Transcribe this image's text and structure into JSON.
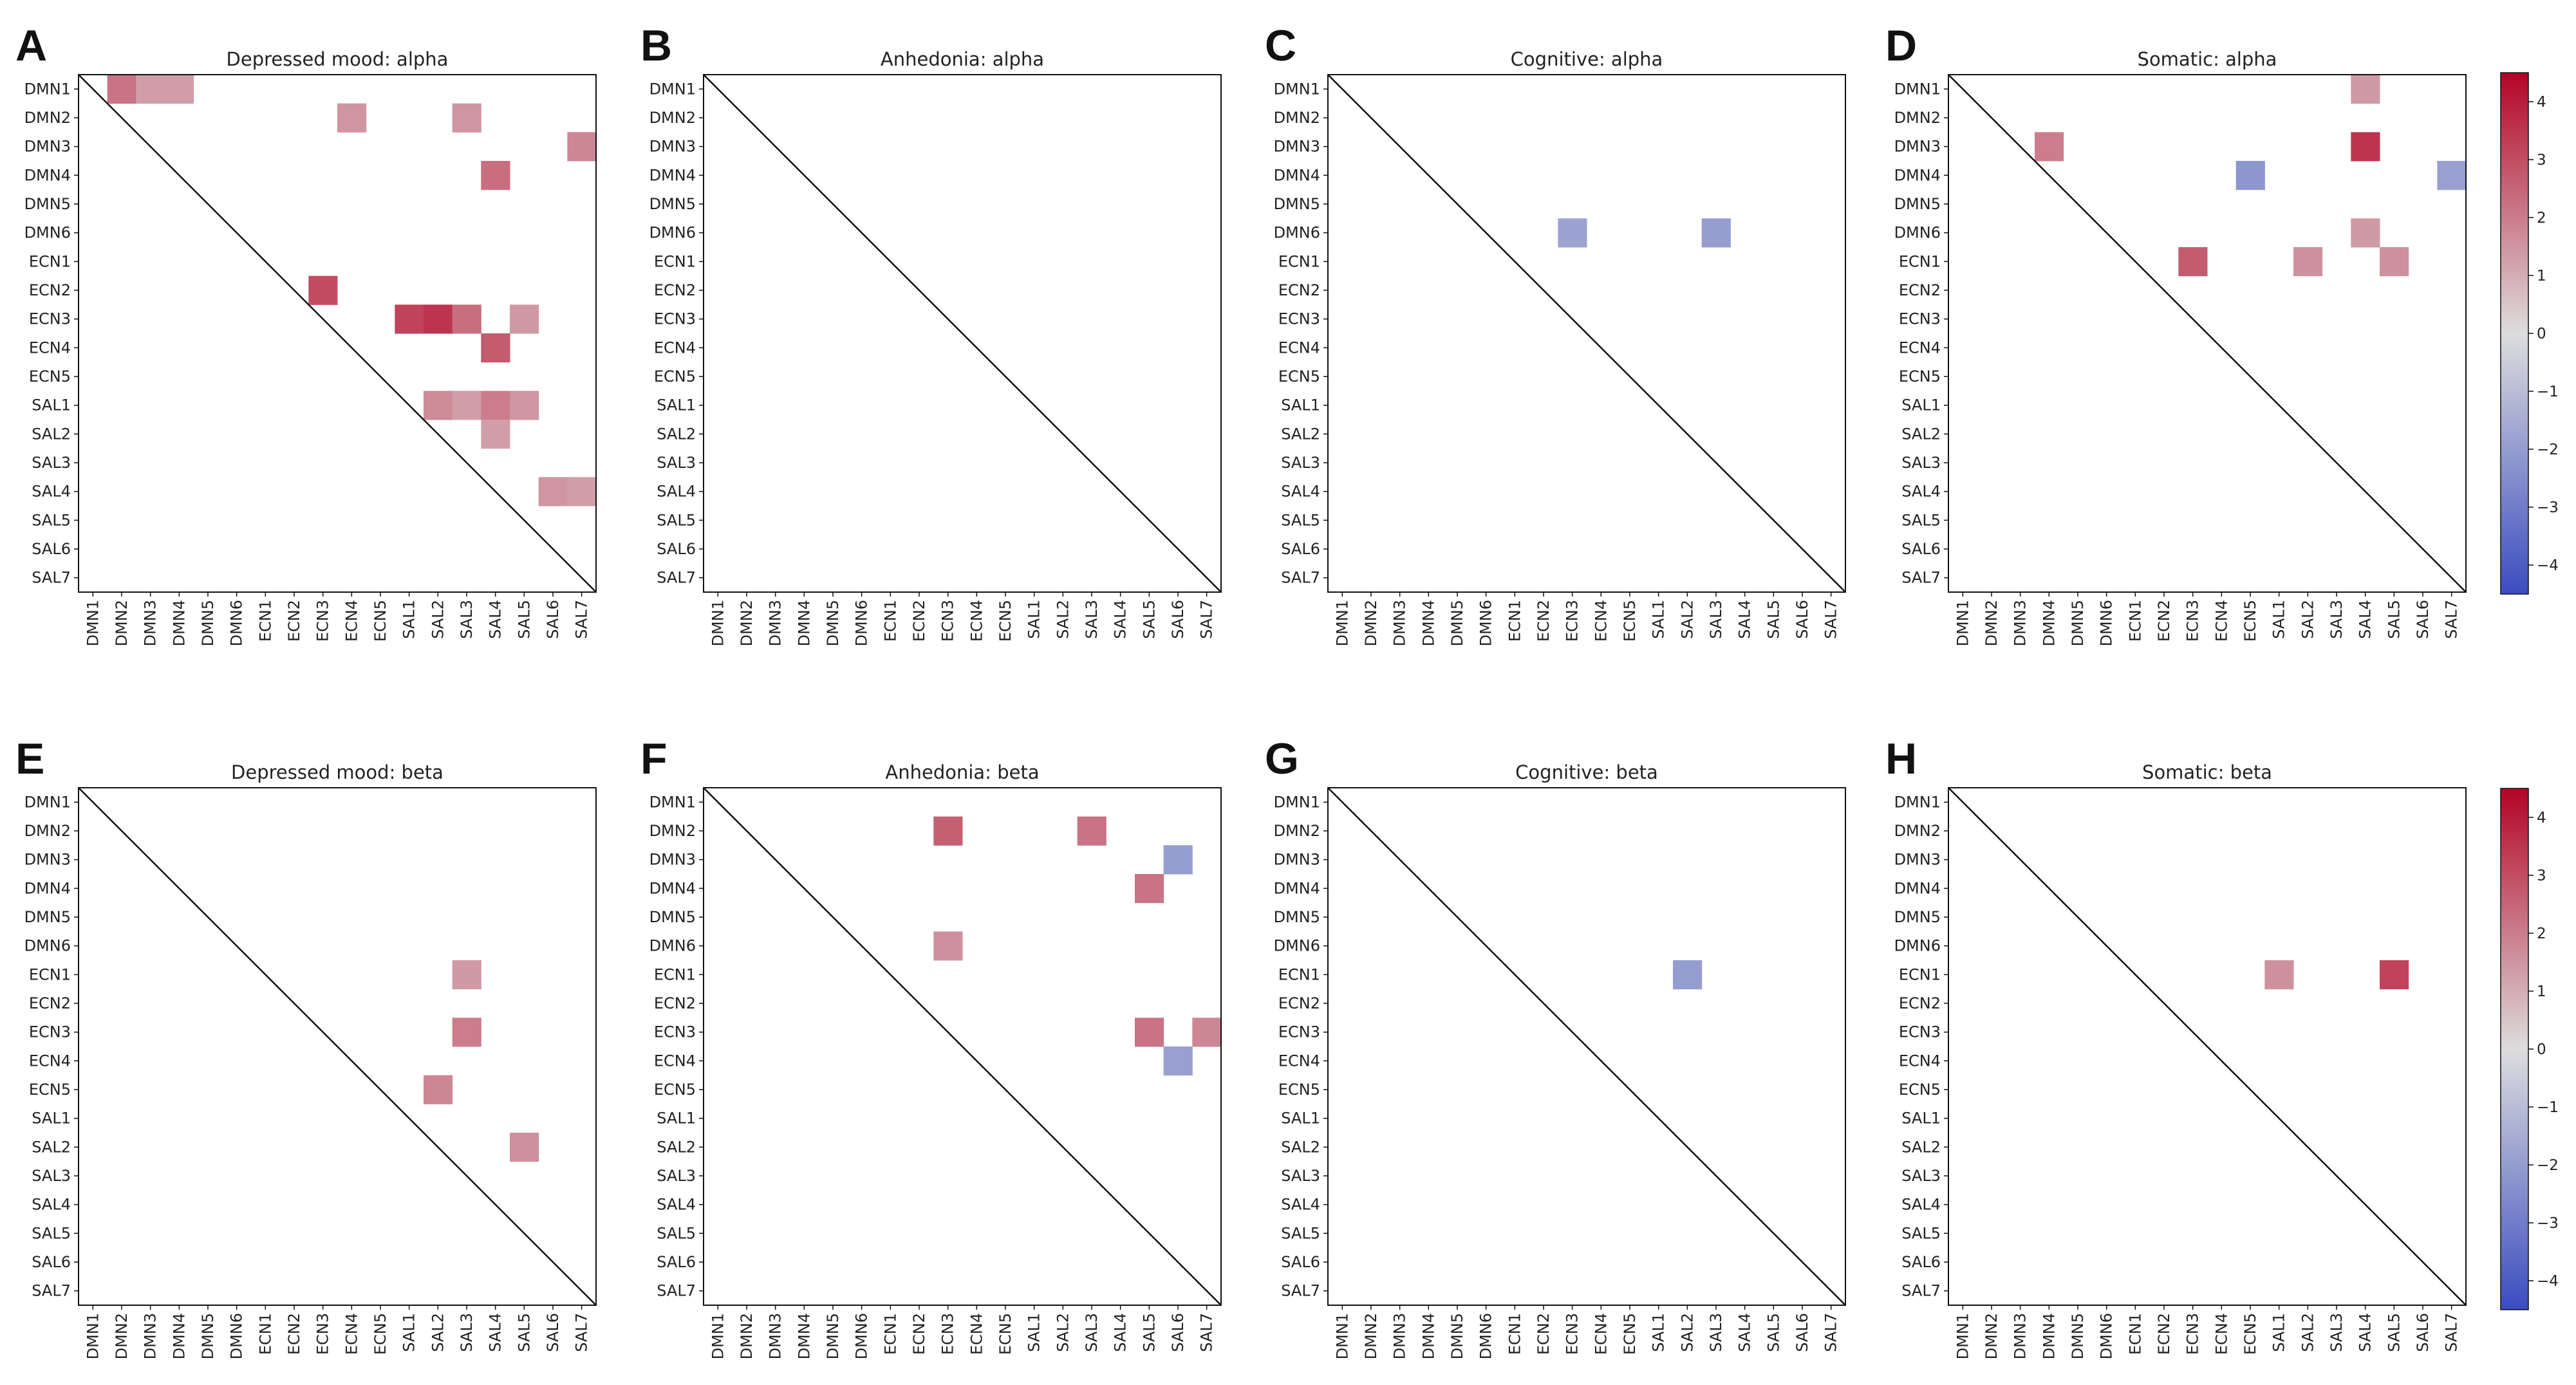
{
  "figure": {
    "labels": [
      "DMN1",
      "DMN2",
      "DMN3",
      "DMN4",
      "DMN5",
      "DMN6",
      "ECN1",
      "ECN2",
      "ECN3",
      "ECN4",
      "ECN5",
      "SAL1",
      "SAL2",
      "SAL3",
      "SAL4",
      "SAL5",
      "SAL6",
      "SAL7"
    ],
    "colorbar": {
      "vmin": -4.5,
      "vmax": 4.5,
      "ticks": [
        4,
        3,
        2,
        1,
        0,
        -1,
        -2,
        -3,
        -4
      ],
      "tick_labels": [
        "4",
        "3",
        "2",
        "1",
        "0",
        "−1",
        "−2",
        "−3",
        "−4"
      ],
      "colormap": "coolwarm",
      "low_color": "#3b4cc0",
      "mid_color": "#dddddd",
      "high_color": "#b40426"
    }
  },
  "chart_data": [
    {
      "type": "heatmap",
      "letter": "A",
      "title": "Depressed mood: alpha",
      "cells": [
        {
          "row": "DMN1",
          "col": "DMN2",
          "value": 2.2
        },
        {
          "row": "DMN1",
          "col": "DMN3",
          "value": 1.3
        },
        {
          "row": "DMN1",
          "col": "DMN4",
          "value": 1.3
        },
        {
          "row": "DMN2",
          "col": "ECN4",
          "value": 1.5
        },
        {
          "row": "DMN2",
          "col": "SAL3",
          "value": 1.5
        },
        {
          "row": "DMN3",
          "col": "SAL7",
          "value": 1.8
        },
        {
          "row": "DMN4",
          "col": "SAL4",
          "value": 2.3
        },
        {
          "row": "ECN2",
          "col": "ECN3",
          "value": 3.0
        },
        {
          "row": "ECN3",
          "col": "SAL1",
          "value": 3.2
        },
        {
          "row": "ECN3",
          "col": "SAL2",
          "value": 3.5
        },
        {
          "row": "ECN3",
          "col": "SAL3",
          "value": 2.3
        },
        {
          "row": "ECN3",
          "col": "SAL5",
          "value": 1.4
        },
        {
          "row": "ECN4",
          "col": "SAL4",
          "value": 2.7
        },
        {
          "row": "SAL1",
          "col": "SAL2",
          "value": 1.7
        },
        {
          "row": "SAL1",
          "col": "SAL3",
          "value": 1.3
        },
        {
          "row": "SAL1",
          "col": "SAL4",
          "value": 2.0
        },
        {
          "row": "SAL1",
          "col": "SAL5",
          "value": 1.5
        },
        {
          "row": "SAL2",
          "col": "SAL4",
          "value": 1.3
        },
        {
          "row": "SAL4",
          "col": "SAL6",
          "value": 1.5
        },
        {
          "row": "SAL4",
          "col": "SAL7",
          "value": 1.3
        }
      ]
    },
    {
      "type": "heatmap",
      "letter": "B",
      "title": "Anhedonia: alpha",
      "cells": []
    },
    {
      "type": "heatmap",
      "letter": "C",
      "title": "Cognitive: alpha",
      "cells": [
        {
          "row": "DMN6",
          "col": "ECN3",
          "value": -1.8
        },
        {
          "row": "DMN6",
          "col": "SAL3",
          "value": -2.0
        }
      ]
    },
    {
      "type": "heatmap",
      "letter": "D",
      "title": "Somatic: alpha",
      "cells": [
        {
          "row": "DMN1",
          "col": "SAL4",
          "value": 1.4
        },
        {
          "row": "DMN3",
          "col": "DMN4",
          "value": 2.0
        },
        {
          "row": "DMN3",
          "col": "SAL4",
          "value": 3.5
        },
        {
          "row": "DMN4",
          "col": "ECN5",
          "value": -2.2
        },
        {
          "row": "DMN4",
          "col": "SAL7",
          "value": -1.9
        },
        {
          "row": "DMN6",
          "col": "SAL4",
          "value": 1.4
        },
        {
          "row": "ECN1",
          "col": "ECN3",
          "value": 2.7
        },
        {
          "row": "ECN1",
          "col": "SAL2",
          "value": 1.6
        },
        {
          "row": "ECN1",
          "col": "SAL5",
          "value": 1.6
        }
      ]
    },
    {
      "type": "heatmap",
      "letter": "E",
      "title": "Depressed mood: beta",
      "cells": [
        {
          "row": "ECN1",
          "col": "SAL3",
          "value": 1.4
        },
        {
          "row": "ECN3",
          "col": "SAL3",
          "value": 2.0
        },
        {
          "row": "ECN5",
          "col": "SAL2",
          "value": 1.8
        },
        {
          "row": "SAL2",
          "col": "SAL5",
          "value": 1.6
        }
      ]
    },
    {
      "type": "heatmap",
      "letter": "F",
      "title": "Anhedonia: beta",
      "cells": [
        {
          "row": "DMN2",
          "col": "ECN3",
          "value": 2.6
        },
        {
          "row": "DMN2",
          "col": "SAL3",
          "value": 2.2
        },
        {
          "row": "DMN3",
          "col": "SAL6",
          "value": -2.0
        },
        {
          "row": "DMN4",
          "col": "SAL5",
          "value": 2.2
        },
        {
          "row": "DMN6",
          "col": "ECN3",
          "value": 1.6
        },
        {
          "row": "ECN3",
          "col": "SAL5",
          "value": 2.2
        },
        {
          "row": "ECN3",
          "col": "SAL7",
          "value": 1.8
        },
        {
          "row": "ECN4",
          "col": "SAL6",
          "value": -1.9
        }
      ]
    },
    {
      "type": "heatmap",
      "letter": "G",
      "title": "Cognitive: beta",
      "cells": [
        {
          "row": "ECN1",
          "col": "SAL2",
          "value": -2.0
        }
      ]
    },
    {
      "type": "heatmap",
      "letter": "H",
      "title": "Somatic: beta",
      "cells": [
        {
          "row": "ECN1",
          "col": "SAL1",
          "value": 1.6
        },
        {
          "row": "ECN1",
          "col": "SAL5",
          "value": 3.2
        }
      ]
    }
  ]
}
